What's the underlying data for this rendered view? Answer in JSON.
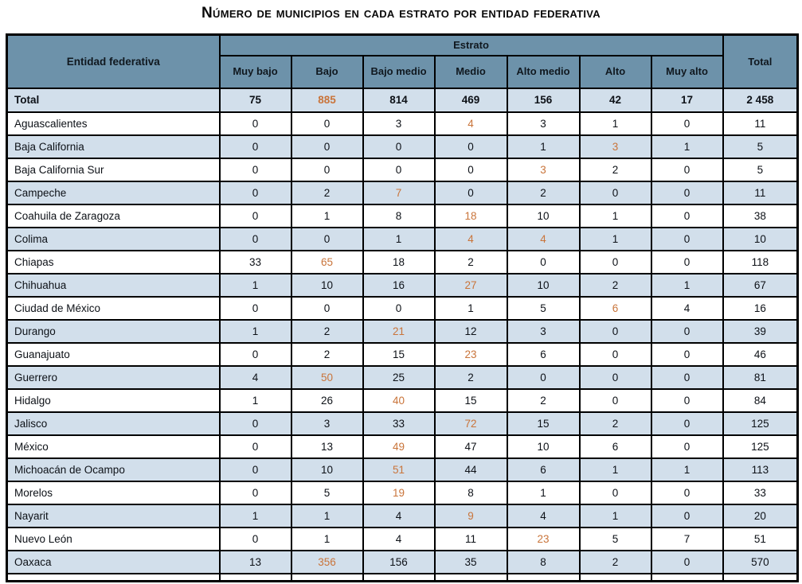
{
  "title": "Número de municipios en cada estrato por entidad federativa",
  "colors": {
    "header_bg": "#6d92aa",
    "alt_row_bg": "#d2dfeb",
    "highlight": "#c9743a",
    "border": "#000000"
  },
  "table": {
    "entity_header": "Entidad federativa",
    "estrato_header": "Estrato",
    "total_header": "Total",
    "strata": [
      "Muy bajo",
      "Bajo",
      "Bajo medio",
      "Medio",
      "Alto medio",
      "Alto",
      "Muy alto"
    ],
    "total_row": {
      "label": "Total",
      "values": [
        "75",
        "885",
        "814",
        "469",
        "156",
        "42",
        "17"
      ],
      "total": "2 458",
      "highlight_indices": [
        1
      ]
    },
    "rows": [
      {
        "label": "Aguascalientes",
        "values": [
          "0",
          "0",
          "3",
          "4",
          "3",
          "1",
          "0"
        ],
        "total": "11",
        "highlight_indices": [
          3
        ]
      },
      {
        "label": "Baja California",
        "values": [
          "0",
          "0",
          "0",
          "0",
          "1",
          "3",
          "1"
        ],
        "total": "5",
        "highlight_indices": [
          5
        ]
      },
      {
        "label": "Baja California Sur",
        "values": [
          "0",
          "0",
          "0",
          "0",
          "3",
          "2",
          "0"
        ],
        "total": "5",
        "highlight_indices": [
          4
        ]
      },
      {
        "label": "Campeche",
        "values": [
          "0",
          "2",
          "7",
          "0",
          "2",
          "0",
          "0"
        ],
        "total": "11",
        "highlight_indices": [
          2
        ]
      },
      {
        "label": "Coahuila de Zaragoza",
        "values": [
          "0",
          "1",
          "8",
          "18",
          "10",
          "1",
          "0"
        ],
        "total": "38",
        "highlight_indices": [
          3
        ]
      },
      {
        "label": "Colima",
        "values": [
          "0",
          "0",
          "1",
          "4",
          "4",
          "1",
          "0"
        ],
        "total": "10",
        "highlight_indices": [
          3,
          4
        ]
      },
      {
        "label": "Chiapas",
        "values": [
          "33",
          "65",
          "18",
          "2",
          "0",
          "0",
          "0"
        ],
        "total": "118",
        "highlight_indices": [
          1
        ]
      },
      {
        "label": "Chihuahua",
        "values": [
          "1",
          "10",
          "16",
          "27",
          "10",
          "2",
          "1"
        ],
        "total": "67",
        "highlight_indices": [
          3
        ]
      },
      {
        "label": "Ciudad de México",
        "values": [
          "0",
          "0",
          "0",
          "1",
          "5",
          "6",
          "4"
        ],
        "total": "16",
        "highlight_indices": [
          5
        ]
      },
      {
        "label": "Durango",
        "values": [
          "1",
          "2",
          "21",
          "12",
          "3",
          "0",
          "0"
        ],
        "total": "39",
        "highlight_indices": [
          2
        ]
      },
      {
        "label": "Guanajuato",
        "values": [
          "0",
          "2",
          "15",
          "23",
          "6",
          "0",
          "0"
        ],
        "total": "46",
        "highlight_indices": [
          3
        ]
      },
      {
        "label": "Guerrero",
        "values": [
          "4",
          "50",
          "25",
          "2",
          "0",
          "0",
          "0"
        ],
        "total": "81",
        "highlight_indices": [
          1
        ]
      },
      {
        "label": "Hidalgo",
        "values": [
          "1",
          "26",
          "40",
          "15",
          "2",
          "0",
          "0"
        ],
        "total": "84",
        "highlight_indices": [
          2
        ]
      },
      {
        "label": "Jalisco",
        "values": [
          "0",
          "3",
          "33",
          "72",
          "15",
          "2",
          "0"
        ],
        "total": "125",
        "highlight_indices": [
          3
        ]
      },
      {
        "label": "México",
        "values": [
          "0",
          "13",
          "49",
          "47",
          "10",
          "6",
          "0"
        ],
        "total": "125",
        "highlight_indices": [
          2
        ]
      },
      {
        "label": "Michoacán de Ocampo",
        "values": [
          "0",
          "10",
          "51",
          "44",
          "6",
          "1",
          "1"
        ],
        "total": "113",
        "highlight_indices": [
          2
        ]
      },
      {
        "label": "Morelos",
        "values": [
          "0",
          "5",
          "19",
          "8",
          "1",
          "0",
          "0"
        ],
        "total": "33",
        "highlight_indices": [
          2
        ]
      },
      {
        "label": "Nayarit",
        "values": [
          "1",
          "1",
          "4",
          "9",
          "4",
          "1",
          "0"
        ],
        "total": "20",
        "highlight_indices": [
          3
        ]
      },
      {
        "label": "Nuevo León",
        "values": [
          "0",
          "1",
          "4",
          "11",
          "23",
          "5",
          "7"
        ],
        "total": "51",
        "highlight_indices": [
          4
        ]
      },
      {
        "label": "Oaxaca",
        "values": [
          "13",
          "356",
          "156",
          "35",
          "8",
          "2",
          "0"
        ],
        "total": "570",
        "highlight_indices": [
          1
        ]
      }
    ]
  }
}
